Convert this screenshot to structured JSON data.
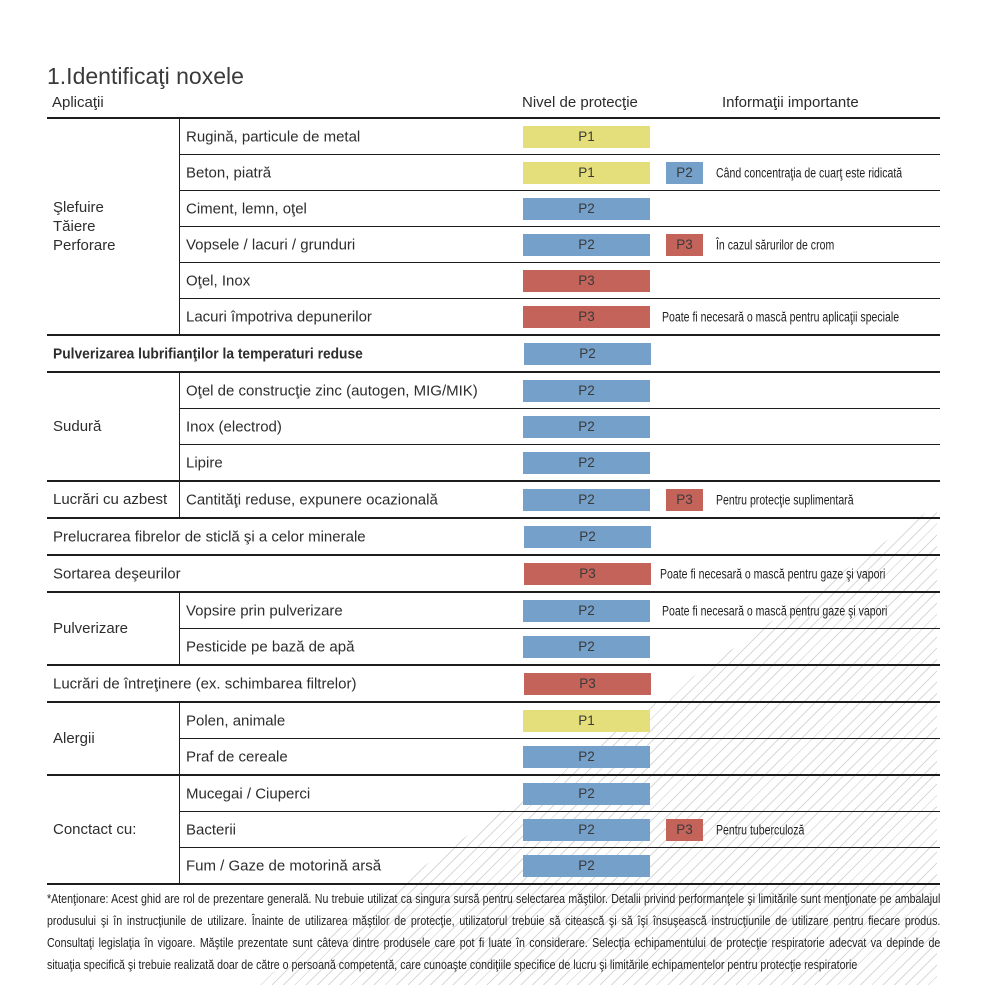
{
  "title": "1.Identificaţi noxele",
  "columns": {
    "applications": "Aplicaţii",
    "protection": "Nivel de protecţie",
    "info": "Informaţii importante"
  },
  "badge_colors": {
    "P1": "#e4de7b",
    "P2": "#74a0c9",
    "P3": "#c4635a"
  },
  "table": {
    "sections": [
      {
        "category": "Şlefuire\nTăiere\nPerforare",
        "rows": [
          {
            "label": "Rugină, particule de metal",
            "badge": "P1"
          },
          {
            "label": "Beton, piatră",
            "badge": "P1",
            "badge2": "P2",
            "info": "Când concentraţia de cuarţ este ridicată"
          },
          {
            "label": "Ciment, lemn, oţel",
            "badge": "P2"
          },
          {
            "label": "Vopsele / lacuri / grunduri",
            "badge": "P2",
            "badge2": "P3",
            "info": "În cazul sărurilor de crom"
          },
          {
            "label": "Oţel, Inox",
            "badge": "P3"
          },
          {
            "label": "Lacuri împotriva depunerilor",
            "badge": "P3",
            "info": "Poate fi necesară o mască pentru aplicaţii speciale"
          }
        ]
      },
      {
        "category": null,
        "bold": true,
        "rows": [
          {
            "label": "Pulverizarea lubrifianţilor la temperaturi reduse",
            "badge": "P2"
          }
        ]
      },
      {
        "category": "Sudură",
        "rows": [
          {
            "label": "Oţel de construcţie zinc (autogen, MIG/MIK)",
            "badge": "P2"
          },
          {
            "label": "Inox (electrod)",
            "badge": "P2"
          },
          {
            "label": "Lipire",
            "badge": "P2"
          }
        ]
      },
      {
        "category": "Lucrări cu azbest",
        "rows": [
          {
            "label": "Cantităţi reduse, expunere ocazională",
            "badge": "P2",
            "badge2": "P3",
            "info": "Pentru protecţie suplimentară"
          }
        ]
      },
      {
        "category": null,
        "rows": [
          {
            "label": "Prelucrarea fibrelor de sticlă şi a celor minerale",
            "badge": "P2"
          }
        ]
      },
      {
        "category": null,
        "rows": [
          {
            "label": "Sortarea deşeurilor",
            "badge": "P3",
            "info": "Poate fi necesară o mască pentru gaze şi vapori"
          }
        ]
      },
      {
        "category": "Pulverizare",
        "rows": [
          {
            "label": "Vopsire prin pulverizare",
            "badge": "P2",
            "info": "Poate fi necesară o mască pentru gaze şi vapori"
          },
          {
            "label": "Pesticide pe bază de apă",
            "badge": "P2"
          }
        ]
      },
      {
        "category": null,
        "rows": [
          {
            "label": "Lucrări de întreţinere (ex. schimbarea filtrelor)",
            "badge": "P3"
          }
        ]
      },
      {
        "category": "Alergii",
        "rows": [
          {
            "label": "Polen, animale",
            "badge": "P1"
          },
          {
            "label": "Praf de cereale",
            "badge": "P2"
          }
        ]
      },
      {
        "category": "Conctact cu:",
        "rows": [
          {
            "label": "Mucegai / Ciuperci",
            "badge": "P2"
          },
          {
            "label": "Bacterii",
            "badge": "P2",
            "badge2": "P3",
            "info": "Pentru tuberculoză"
          },
          {
            "label": "Fum / Gaze de motorină arsă",
            "badge": "P2"
          }
        ]
      }
    ]
  },
  "footnote": "*Atenţionare: Acest ghid are rol de prezentare generală. Nu trebuie utilizat ca singura sursă pentru selectarea măştilor. Detalii privind performanţele şi limitările sunt menţionate pe ambalajul produsului şi în instrucţiunile de utilizare. Înainte de utilizarea măştilor de protecţie, utilizatorul trebuie să citească şi să îşi însuşească instrucţiunile de utilizare pentru fiecare produs. Consultaţi legislaţia în vigoare. Măştile prezentate sunt câteva dintre produsele care pot fi luate în considerare. Selecţia echipamentului de protecţie respiratorie adecvat va depinde de situaţia specifică şi trebuie realizată doar de către o persoană competentă, care cunoaşte condiţiile specifice de lucru şi limitările echipamentelor pentru protecţie respiratorie"
}
